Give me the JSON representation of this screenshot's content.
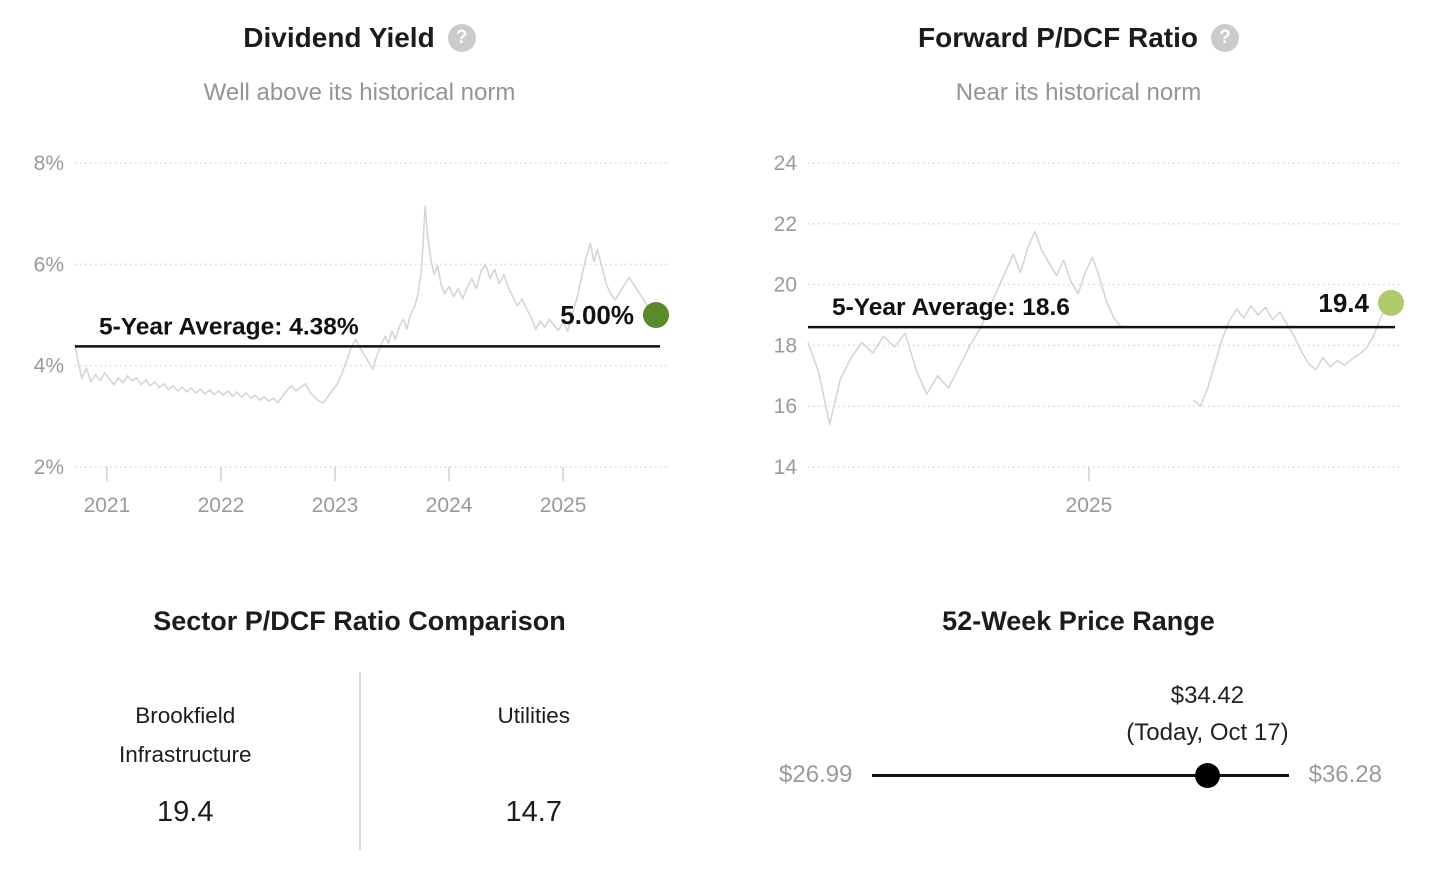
{
  "icons": {
    "help_glyph": "?"
  },
  "panels": {
    "dividend_yield": {
      "title": "Dividend Yield",
      "subtitle": "Well above its historical norm",
      "average_label": "5-Year Average: 4.38%",
      "current_label": "5.00%",
      "dot_color": "#5b8a2b"
    },
    "forward_pdcf": {
      "title": "Forward P/DCF Ratio",
      "subtitle": "Near its historical norm",
      "average_label": "5-Year Average: 18.6",
      "current_label": "19.4",
      "dot_color": "#b0c96c"
    },
    "sector_comparison": {
      "title": "Sector P/DCF Ratio Comparison",
      "columns": [
        {
          "label_lines": [
            "Brookfield",
            "Infrastructure"
          ],
          "value": "19.4"
        },
        {
          "label_lines": [
            "Utilities",
            ""
          ],
          "value": "14.7"
        }
      ]
    },
    "price_range": {
      "title": "52-Week Price Range",
      "current_price": "$34.42",
      "current_note": "(Today, Oct 17)",
      "low": "$26.99",
      "high": "$36.28",
      "low_value": 26.99,
      "high_value": 36.28,
      "current_value": 34.42,
      "position_fraction": 0.805
    }
  },
  "chart_data": [
    {
      "id": "chart-dividend",
      "type": "line",
      "title": "Dividend Yield",
      "subtitle": "Well above its historical norm",
      "xlim": [
        2020.72,
        2025.85
      ],
      "ylim": [
        2,
        8
      ],
      "grid": true,
      "y_ticks": [
        {
          "value": 8,
          "label": "8%"
        },
        {
          "value": 6,
          "label": "6%"
        },
        {
          "value": 4,
          "label": "4%"
        },
        {
          "value": 2,
          "label": "2%"
        }
      ],
      "x_ticks": [
        {
          "value": 2021,
          "label": "2021"
        },
        {
          "value": 2022,
          "label": "2022"
        },
        {
          "value": 2023,
          "label": "2023"
        },
        {
          "value": 2024,
          "label": "2024"
        },
        {
          "value": 2025,
          "label": "2025"
        }
      ],
      "average": {
        "value": 4.38,
        "label": "5-Year Average: 4.38%"
      },
      "current": {
        "value": 5.0,
        "label": "5.00%",
        "color": "#5b8a2b"
      },
      "series_color": "#d5d5d5",
      "points": [
        [
          2020.72,
          4.42
        ],
        [
          2020.75,
          4.05
        ],
        [
          2020.78,
          3.75
        ],
        [
          2020.82,
          3.95
        ],
        [
          2020.86,
          3.68
        ],
        [
          2020.9,
          3.82
        ],
        [
          2020.94,
          3.7
        ],
        [
          2020.98,
          3.86
        ],
        [
          2021.02,
          3.74
        ],
        [
          2021.06,
          3.62
        ],
        [
          2021.1,
          3.76
        ],
        [
          2021.14,
          3.66
        ],
        [
          2021.18,
          3.8
        ],
        [
          2021.22,
          3.7
        ],
        [
          2021.26,
          3.76
        ],
        [
          2021.3,
          3.63
        ],
        [
          2021.34,
          3.72
        ],
        [
          2021.38,
          3.6
        ],
        [
          2021.42,
          3.68
        ],
        [
          2021.46,
          3.57
        ],
        [
          2021.5,
          3.64
        ],
        [
          2021.54,
          3.53
        ],
        [
          2021.58,
          3.6
        ],
        [
          2021.62,
          3.5
        ],
        [
          2021.66,
          3.58
        ],
        [
          2021.7,
          3.48
        ],
        [
          2021.74,
          3.56
        ],
        [
          2021.78,
          3.46
        ],
        [
          2021.82,
          3.54
        ],
        [
          2021.86,
          3.44
        ],
        [
          2021.9,
          3.52
        ],
        [
          2021.94,
          3.43
        ],
        [
          2021.98,
          3.5
        ],
        [
          2022.02,
          3.42
        ],
        [
          2022.06,
          3.5
        ],
        [
          2022.1,
          3.4
        ],
        [
          2022.14,
          3.48
        ],
        [
          2022.18,
          3.38
        ],
        [
          2022.22,
          3.46
        ],
        [
          2022.26,
          3.36
        ],
        [
          2022.3,
          3.42
        ],
        [
          2022.34,
          3.32
        ],
        [
          2022.38,
          3.38
        ],
        [
          2022.42,
          3.3
        ],
        [
          2022.46,
          3.36
        ],
        [
          2022.5,
          3.27
        ],
        [
          2022.54,
          3.4
        ],
        [
          2022.58,
          3.52
        ],
        [
          2022.62,
          3.6
        ],
        [
          2022.66,
          3.5
        ],
        [
          2022.7,
          3.58
        ],
        [
          2022.74,
          3.64
        ],
        [
          2022.78,
          3.48
        ],
        [
          2022.82,
          3.38
        ],
        [
          2022.86,
          3.3
        ],
        [
          2022.9,
          3.27
        ],
        [
          2022.94,
          3.4
        ],
        [
          2022.98,
          3.52
        ],
        [
          2023.02,
          3.64
        ],
        [
          2023.06,
          3.84
        ],
        [
          2023.1,
          4.08
        ],
        [
          2023.14,
          4.35
        ],
        [
          2023.18,
          4.52
        ],
        [
          2023.22,
          4.35
        ],
        [
          2023.26,
          4.2
        ],
        [
          2023.3,
          4.05
        ],
        [
          2023.33,
          3.93
        ],
        [
          2023.36,
          4.15
        ],
        [
          2023.4,
          4.4
        ],
        [
          2023.44,
          4.58
        ],
        [
          2023.47,
          4.44
        ],
        [
          2023.5,
          4.68
        ],
        [
          2023.53,
          4.52
        ],
        [
          2023.57,
          4.8
        ],
        [
          2023.6,
          4.92
        ],
        [
          2023.63,
          4.72
        ],
        [
          2023.66,
          5.0
        ],
        [
          2023.7,
          5.18
        ],
        [
          2023.73,
          5.42
        ],
        [
          2023.76,
          5.95
        ],
        [
          2023.79,
          7.15
        ],
        [
          2023.81,
          6.6
        ],
        [
          2023.84,
          6.1
        ],
        [
          2023.87,
          5.8
        ],
        [
          2023.9,
          5.98
        ],
        [
          2023.93,
          5.6
        ],
        [
          2023.96,
          5.42
        ],
        [
          2024.0,
          5.56
        ],
        [
          2024.04,
          5.36
        ],
        [
          2024.08,
          5.52
        ],
        [
          2024.12,
          5.32
        ],
        [
          2024.16,
          5.55
        ],
        [
          2024.2,
          5.72
        ],
        [
          2024.24,
          5.52
        ],
        [
          2024.28,
          5.86
        ],
        [
          2024.32,
          6.0
        ],
        [
          2024.36,
          5.72
        ],
        [
          2024.4,
          5.9
        ],
        [
          2024.44,
          5.62
        ],
        [
          2024.48,
          5.8
        ],
        [
          2024.52,
          5.54
        ],
        [
          2024.56,
          5.36
        ],
        [
          2024.6,
          5.18
        ],
        [
          2024.64,
          5.32
        ],
        [
          2024.68,
          5.12
        ],
        [
          2024.72,
          4.96
        ],
        [
          2024.76,
          4.72
        ],
        [
          2024.8,
          4.88
        ],
        [
          2024.84,
          4.76
        ],
        [
          2024.88,
          4.92
        ],
        [
          2024.92,
          4.8
        ],
        [
          2024.96,
          4.7
        ],
        [
          2025.0,
          4.86
        ],
        [
          2025.04,
          4.68
        ],
        [
          2025.08,
          5.02
        ],
        [
          2025.12,
          5.32
        ],
        [
          2025.16,
          5.72
        ],
        [
          2025.2,
          6.12
        ],
        [
          2025.24,
          6.42
        ],
        [
          2025.27,
          6.05
        ],
        [
          2025.3,
          6.3
        ],
        [
          2025.34,
          5.96
        ],
        [
          2025.38,
          5.6
        ],
        [
          2025.42,
          5.4
        ],
        [
          2025.46,
          5.3
        ],
        [
          2025.5,
          5.46
        ],
        [
          2025.54,
          5.6
        ],
        [
          2025.58,
          5.74
        ],
        [
          2025.62,
          5.6
        ],
        [
          2025.66,
          5.46
        ],
        [
          2025.7,
          5.32
        ],
        [
          2025.74,
          5.18
        ],
        [
          2025.8,
          5.0
        ]
      ]
    },
    {
      "id": "chart-pdcf",
      "type": "line",
      "title": "Forward P/DCF Ratio",
      "subtitle": "Near its historical norm",
      "xlim": [
        2024.22,
        2025.85
      ],
      "ylim": [
        14,
        24
      ],
      "grid": true,
      "y_ticks": [
        {
          "value": 24,
          "label": "24"
        },
        {
          "value": 22,
          "label": "22"
        },
        {
          "value": 20,
          "label": "20"
        },
        {
          "value": 18,
          "label": "18"
        },
        {
          "value": 16,
          "label": "16"
        },
        {
          "value": 14,
          "label": "14"
        }
      ],
      "x_ticks": [
        {
          "value": 2025,
          "label": "2025"
        }
      ],
      "average": {
        "value": 18.6,
        "label": "5-Year Average: 18.6"
      },
      "current": {
        "value": 19.4,
        "label": "19.4",
        "color": "#b0c96c"
      },
      "series_color": "#d5d5d5",
      "points": [
        [
          2024.22,
          18.1
        ],
        [
          2024.25,
          17.1
        ],
        [
          2024.28,
          15.4
        ],
        [
          2024.31,
          16.9
        ],
        [
          2024.34,
          17.6
        ],
        [
          2024.37,
          18.1
        ],
        [
          2024.4,
          17.75
        ],
        [
          2024.43,
          18.3
        ],
        [
          2024.46,
          17.95
        ],
        [
          2024.49,
          18.4
        ],
        [
          2024.52,
          17.2
        ],
        [
          2024.55,
          16.4
        ],
        [
          2024.58,
          17.0
        ],
        [
          2024.61,
          16.6
        ],
        [
          2024.64,
          17.3
        ],
        [
          2024.67,
          18.0
        ],
        [
          2024.7,
          18.6
        ],
        [
          2024.73,
          19.4
        ],
        [
          2024.76,
          20.2
        ],
        [
          2024.79,
          21.0
        ],
        [
          2024.81,
          20.4
        ],
        [
          2024.83,
          21.2
        ],
        [
          2024.85,
          21.75
        ],
        [
          2024.87,
          21.1
        ],
        [
          2024.89,
          20.7
        ],
        [
          2024.91,
          20.3
        ],
        [
          2024.93,
          20.8
        ],
        [
          2024.95,
          20.1
        ],
        [
          2024.97,
          19.7
        ],
        [
          2024.99,
          20.4
        ],
        [
          2025.01,
          20.9
        ],
        [
          2025.03,
          20.2
        ],
        [
          2025.05,
          19.4
        ],
        [
          2025.07,
          18.9
        ],
        [
          2025.09,
          18.6
        ],
        [
          2025.19,
          null
        ],
        [
          2025.29,
          16.2
        ],
        [
          2025.31,
          16.0
        ],
        [
          2025.33,
          16.6
        ],
        [
          2025.35,
          17.4
        ],
        [
          2025.37,
          18.2
        ],
        [
          2025.39,
          18.8
        ],
        [
          2025.41,
          19.2
        ],
        [
          2025.43,
          18.9
        ],
        [
          2025.45,
          19.3
        ],
        [
          2025.47,
          19.0
        ],
        [
          2025.49,
          19.25
        ],
        [
          2025.51,
          18.85
        ],
        [
          2025.53,
          19.1
        ],
        [
          2025.55,
          18.7
        ],
        [
          2025.57,
          18.3
        ],
        [
          2025.59,
          17.8
        ],
        [
          2025.61,
          17.4
        ],
        [
          2025.63,
          17.2
        ],
        [
          2025.65,
          17.6
        ],
        [
          2025.67,
          17.3
        ],
        [
          2025.69,
          17.5
        ],
        [
          2025.71,
          17.35
        ],
        [
          2025.73,
          17.55
        ],
        [
          2025.75,
          17.7
        ],
        [
          2025.77,
          17.9
        ],
        [
          2025.79,
          18.3
        ],
        [
          2025.81,
          18.9
        ],
        [
          2025.83,
          19.4
        ]
      ]
    },
    {
      "type": "table",
      "title": "Sector P/DCF Ratio Comparison",
      "categories": [
        "Brookfield Infrastructure",
        "Utilities"
      ],
      "values": [
        19.4,
        14.7
      ]
    },
    {
      "type": "scatter",
      "title": "52-Week Price Range",
      "xlim": [
        26.99,
        36.28
      ],
      "x": [
        34.42
      ],
      "annotations": [
        "$34.42",
        "(Today, Oct 17)",
        "$26.99",
        "$36.28"
      ]
    }
  ]
}
